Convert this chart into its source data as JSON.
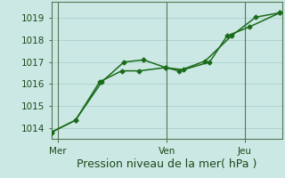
{
  "background_color": "#cce8e4",
  "grid_color": "#b0d4d0",
  "line_color": "#1a6b1a",
  "xlabel": "Pression niveau de la mer( hPa )",
  "ylim": [
    1013.5,
    1019.75
  ],
  "xlim": [
    0.0,
    10.5
  ],
  "yticks": [
    1014,
    1015,
    1016,
    1017,
    1018,
    1019
  ],
  "xtick_positions": [
    0.3,
    5.25,
    8.8
  ],
  "xtick_labels": [
    "Mer",
    "Ven",
    "Jeu"
  ],
  "vlines_x": [
    0.3,
    5.25,
    8.8
  ],
  "line1_x": [
    0.0,
    1.1,
    2.2,
    3.2,
    4.0,
    5.2,
    6.0,
    7.2,
    8.0,
    9.0,
    10.4
  ],
  "line1_y": [
    1013.8,
    1014.35,
    1016.1,
    1016.6,
    1016.6,
    1016.75,
    1016.65,
    1017.0,
    1018.2,
    1018.6,
    1019.25
  ],
  "line2_x": [
    0.0,
    1.1,
    2.3,
    3.3,
    4.2,
    5.2,
    5.8,
    7.0,
    8.2,
    9.3,
    10.4
  ],
  "line2_y": [
    1013.8,
    1014.35,
    1016.1,
    1017.0,
    1017.1,
    1016.75,
    1016.6,
    1017.05,
    1018.2,
    1019.05,
    1019.25
  ],
  "tick_fontsize": 7.5,
  "xlabel_fontsize": 9,
  "font_color": "#1a4a1a"
}
